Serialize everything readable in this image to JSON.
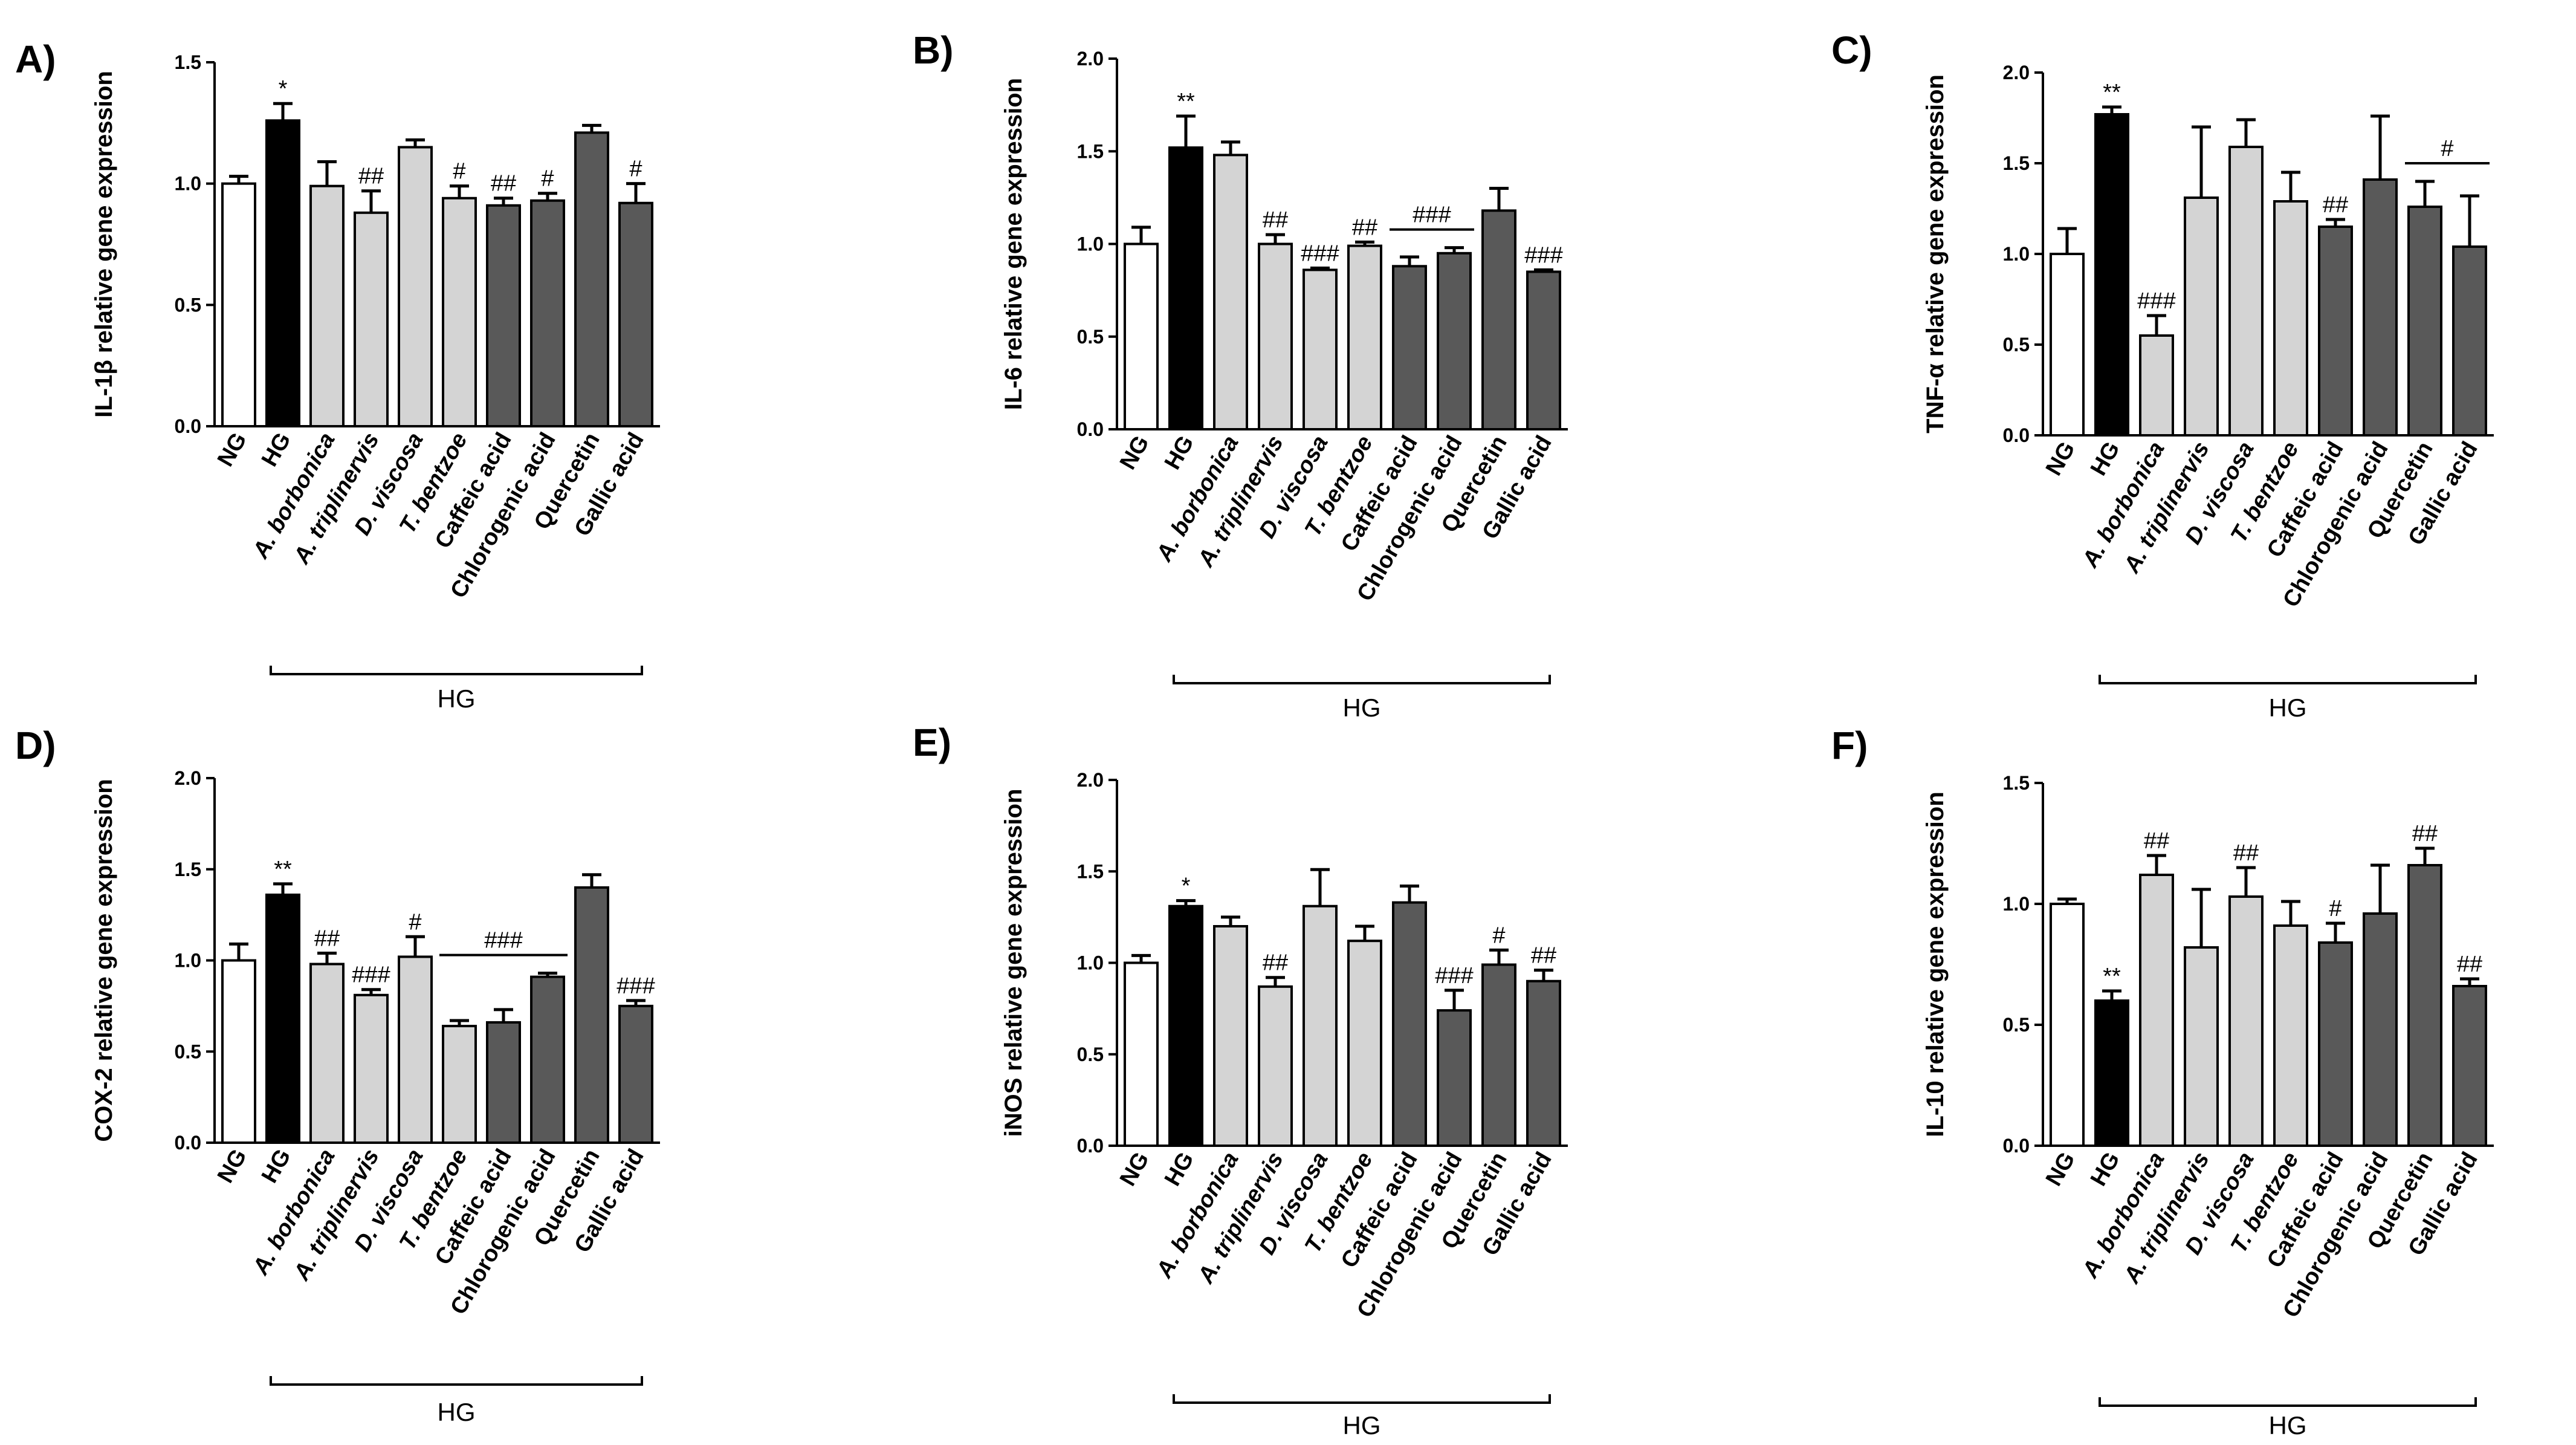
{
  "colors": {
    "NG": "#ffffff",
    "HG": "#000000",
    "extract": "#d4d4d4",
    "compound": "#595959"
  },
  "chart_data": [
    {
      "type": "bar",
      "panel": "A)",
      "ylabel": "IL-1β relative gene expression",
      "ylim": [
        0,
        1.5
      ],
      "yticks": [
        "0.0",
        "0.5",
        "1.0",
        "1.5"
      ],
      "categories": [
        "NG",
        "HG",
        "A. borbonica",
        "A. triplinervis",
        "D. viscosa",
        "T. bentzoe",
        "Caffeic acid",
        "Chlorogenic acid",
        "Quercetin",
        "Gallic acid"
      ],
      "italic": [
        false,
        false,
        true,
        true,
        true,
        true,
        false,
        false,
        false,
        false
      ],
      "groups": [
        "NG",
        "HG",
        "extract",
        "extract",
        "extract",
        "extract",
        "compound",
        "compound",
        "compound",
        "compound"
      ],
      "values": [
        1.0,
        1.26,
        0.99,
        0.88,
        1.15,
        0.94,
        0.91,
        0.93,
        1.21,
        0.92
      ],
      "errors": [
        0.03,
        0.07,
        0.1,
        0.09,
        0.03,
        0.05,
        0.03,
        0.03,
        0.03,
        0.08
      ],
      "annotations": [
        "",
        "*",
        "",
        "##",
        "",
        "#",
        "##",
        "#",
        "",
        "#"
      ],
      "spans": [],
      "group_label": "HG"
    },
    {
      "type": "bar",
      "panel": "B)",
      "ylabel": "IL-6 relative gene expression",
      "ylim": [
        0,
        2.0
      ],
      "yticks": [
        "0.0",
        "0.5",
        "1.0",
        "1.5",
        "2.0"
      ],
      "categories": [
        "NG",
        "HG",
        "A. borbonica",
        "A. triplinervis",
        "D. viscosa",
        "T. bentzoe",
        "Caffeic acid",
        "Chlorogenic acid",
        "Quercetin",
        "Gallic acid"
      ],
      "italic": [
        false,
        false,
        true,
        true,
        true,
        true,
        false,
        false,
        false,
        false
      ],
      "groups": [
        "NG",
        "HG",
        "extract",
        "extract",
        "extract",
        "extract",
        "compound",
        "compound",
        "compound",
        "compound"
      ],
      "values": [
        1.0,
        1.52,
        1.48,
        1.0,
        0.86,
        0.99,
        0.88,
        0.95,
        1.18,
        0.85
      ],
      "errors": [
        0.09,
        0.17,
        0.07,
        0.05,
        0.01,
        0.02,
        0.05,
        0.03,
        0.12,
        0.01
      ],
      "annotations": [
        "",
        "**",
        "",
        "##",
        "###",
        "##",
        "",
        "",
        "",
        "###"
      ],
      "spans": [
        {
          "from": 6,
          "to": 7,
          "label": "###"
        }
      ],
      "group_label": "HG"
    },
    {
      "type": "bar",
      "panel": "C)",
      "ylabel": "TNF-α relative gene expression",
      "ylim": [
        0,
        2.0
      ],
      "yticks": [
        "0.0",
        "0.5",
        "1.0",
        "1.5",
        "2.0"
      ],
      "categories": [
        "NG",
        "HG",
        "A. borbonica",
        "A. triplinervis",
        "D. viscosa",
        "T. bentzoe",
        "Caffeic acid",
        "Chlorogenic acid",
        "Quercetin",
        "Gallic acid"
      ],
      "italic": [
        false,
        false,
        true,
        true,
        true,
        true,
        false,
        false,
        false,
        false
      ],
      "groups": [
        "NG",
        "HG",
        "extract",
        "extract",
        "extract",
        "extract",
        "compound",
        "compound",
        "compound",
        "compound"
      ],
      "values": [
        1.0,
        1.77,
        0.55,
        1.31,
        1.59,
        1.29,
        1.15,
        1.41,
        1.26,
        1.04
      ],
      "errors": [
        0.14,
        0.04,
        0.11,
        0.39,
        0.15,
        0.16,
        0.04,
        0.35,
        0.14,
        0.28
      ],
      "annotations": [
        "",
        "**",
        "###",
        "",
        "",
        "",
        "##",
        "",
        "",
        ""
      ],
      "spans": [
        {
          "from": 8,
          "to": 9,
          "label": "#"
        }
      ],
      "group_label": "HG"
    },
    {
      "type": "bar",
      "panel": "D)",
      "ylabel": "COX-2 relative gene expression",
      "ylim": [
        0,
        2.0
      ],
      "yticks": [
        "0.0",
        "0.5",
        "1.0",
        "1.5",
        "2.0"
      ],
      "categories": [
        "NG",
        "HG",
        "A. borbonica",
        "A. triplinervis",
        "D. viscosa",
        "T. bentzoe",
        "Caffeic acid",
        "Chlorogenic acid",
        "Quercetin",
        "Gallic acid"
      ],
      "italic": [
        false,
        false,
        true,
        true,
        true,
        true,
        false,
        false,
        false,
        false
      ],
      "groups": [
        "NG",
        "HG",
        "extract",
        "extract",
        "extract",
        "extract",
        "compound",
        "compound",
        "compound",
        "compound"
      ],
      "values": [
        1.0,
        1.36,
        0.98,
        0.81,
        1.02,
        0.64,
        0.66,
        0.91,
        1.4,
        0.75
      ],
      "errors": [
        0.09,
        0.06,
        0.06,
        0.03,
        0.11,
        0.03,
        0.07,
        0.02,
        0.07,
        0.03
      ],
      "annotations": [
        "",
        "**",
        "##",
        "###",
        "#",
        "",
        "",
        "",
        "",
        "###"
      ],
      "spans": [
        {
          "from": 5,
          "to": 7,
          "label": "###"
        }
      ],
      "group_label": "HG"
    },
    {
      "type": "bar",
      "panel": "E)",
      "ylabel": "iNOS relative gene expression",
      "ylim": [
        0,
        2.0
      ],
      "yticks": [
        "0.0",
        "0.5",
        "1.0",
        "1.5",
        "2.0"
      ],
      "categories": [
        "NG",
        "HG",
        "A. borbonica",
        "A. triplinervis",
        "D. viscosa",
        "T. bentzoe",
        "Caffeic acid",
        "Chlorogenic acid",
        "Quercetin",
        "Gallic acid"
      ],
      "italic": [
        false,
        false,
        true,
        true,
        true,
        true,
        false,
        false,
        false,
        false
      ],
      "groups": [
        "NG",
        "HG",
        "extract",
        "extract",
        "extract",
        "extract",
        "compound",
        "compound",
        "compound",
        "compound"
      ],
      "values": [
        1.0,
        1.31,
        1.2,
        0.87,
        1.31,
        1.12,
        1.33,
        0.74,
        0.99,
        0.9
      ],
      "errors": [
        0.04,
        0.03,
        0.05,
        0.05,
        0.2,
        0.08,
        0.09,
        0.11,
        0.08,
        0.06
      ],
      "annotations": [
        "",
        "*",
        "",
        "##",
        "",
        "",
        "",
        "###",
        "#",
        "##"
      ],
      "spans": [],
      "group_label": "HG"
    },
    {
      "type": "bar",
      "panel": "F)",
      "ylabel": "IL-10 relative gene expression",
      "ylim": [
        0,
        1.5
      ],
      "yticks": [
        "0.0",
        "0.5",
        "1.0",
        "1.5"
      ],
      "categories": [
        "NG",
        "HG",
        "A. borbonica",
        "A. triplinervis",
        "D. viscosa",
        "T. bentzoe",
        "Caffeic acid",
        "Chlorogenic acid",
        "Quercetin",
        "Gallic acid"
      ],
      "italic": [
        false,
        false,
        true,
        true,
        true,
        true,
        false,
        false,
        false,
        false
      ],
      "groups": [
        "NG",
        "HG",
        "extract",
        "extract",
        "extract",
        "extract",
        "compound",
        "compound",
        "compound",
        "compound"
      ],
      "values": [
        1.0,
        0.6,
        1.12,
        0.82,
        1.03,
        0.91,
        0.84,
        0.96,
        1.16,
        0.66
      ],
      "errors": [
        0.02,
        0.04,
        0.08,
        0.24,
        0.12,
        0.1,
        0.08,
        0.2,
        0.07,
        0.03
      ],
      "annotations": [
        "",
        "**",
        "##",
        "",
        "##",
        "",
        "#",
        "",
        "##",
        "##"
      ],
      "spans": [],
      "group_label": "HG"
    }
  ]
}
